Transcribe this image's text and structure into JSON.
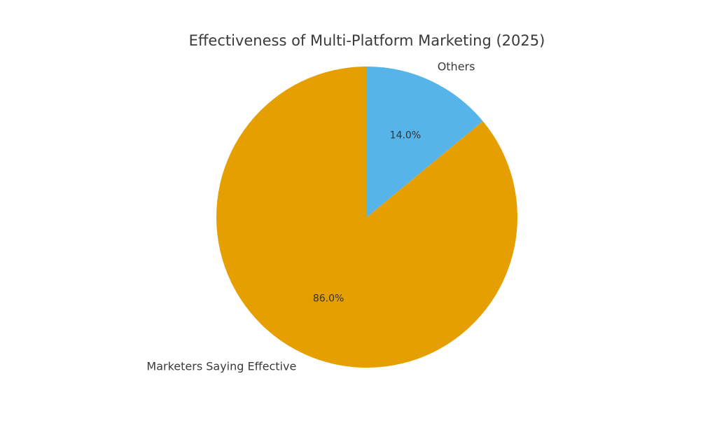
{
  "chart_data": {
    "type": "pie",
    "title": "Effectiveness of Multi-Platform Marketing (2025)",
    "start_angle_deg": 90,
    "direction": "clockwise",
    "slices": [
      {
        "label": "Others",
        "value": 14.0,
        "pct_label": "14.0%",
        "color": "#56B4E9"
      },
      {
        "label": "Marketers Saying Effective",
        "value": 86.0,
        "pct_label": "86.0%",
        "color": "#E69F00"
      }
    ]
  }
}
